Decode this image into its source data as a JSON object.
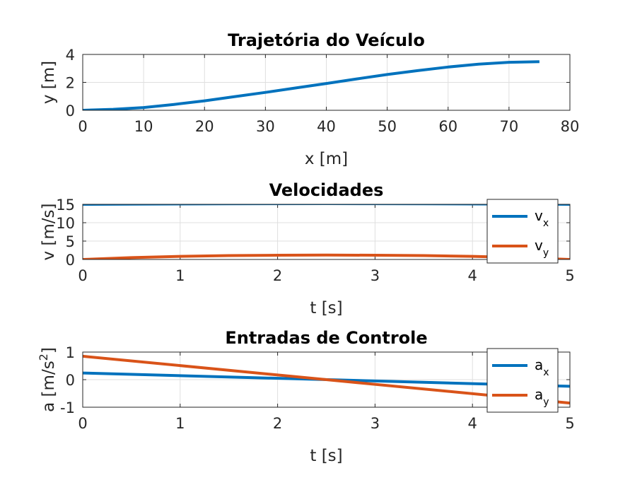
{
  "chart_data": [
    {
      "type": "line",
      "title": "Trajetória do Veículo",
      "xlabel": "x [m]",
      "ylabel": "y [m]",
      "xlim": [
        0,
        80
      ],
      "ylim": [
        0,
        4
      ],
      "xticks": [
        "0",
        "10",
        "20",
        "30",
        "40",
        "50",
        "60",
        "70",
        "80"
      ],
      "yticks": [
        "0",
        "2",
        "4"
      ],
      "grid": true,
      "series": [
        {
          "color": "#0072BD",
          "x": [
            0,
            5,
            10,
            15,
            20,
            25,
            30,
            35,
            40,
            45,
            50,
            55,
            60,
            65,
            70,
            75
          ],
          "y": [
            0.0,
            0.07,
            0.2,
            0.42,
            0.68,
            0.98,
            1.28,
            1.6,
            1.92,
            2.25,
            2.56,
            2.84,
            3.1,
            3.3,
            3.44,
            3.48
          ]
        }
      ]
    },
    {
      "type": "line",
      "title": "Velocidades",
      "xlabel": "t [s]",
      "ylabel": "v [m/s]",
      "xlim": [
        0,
        5
      ],
      "ylim": [
        0,
        15
      ],
      "xticks": [
        "0",
        "1",
        "2",
        "3",
        "4",
        "5"
      ],
      "yticks": [
        "0",
        "5",
        "10",
        "15"
      ],
      "grid": true,
      "legend_position": "top-right",
      "series": [
        {
          "legend_main": "v",
          "legend_sub": "x",
          "color": "#0072BD",
          "x": [
            0,
            0.5,
            1,
            1.5,
            2,
            2.5,
            3,
            3.5,
            4,
            4.5,
            5
          ],
          "y": [
            15.0,
            15.05,
            15.1,
            15.15,
            15.18,
            15.2,
            15.18,
            15.15,
            15.1,
            15.05,
            15.0
          ]
        },
        {
          "legend_main": "v",
          "legend_sub": "y",
          "color": "#D95319",
          "x": [
            0,
            0.5,
            1,
            1.5,
            2,
            2.5,
            3,
            3.5,
            4,
            4.5,
            5
          ],
          "y": [
            0.0,
            0.5,
            0.85,
            1.05,
            1.15,
            1.2,
            1.15,
            1.05,
            0.85,
            0.5,
            0.0
          ]
        }
      ]
    },
    {
      "type": "line",
      "title": "Entradas de Controle",
      "xlabel": "t [s]",
      "ylabel": "a [m/s",
      "ylabel_superscript": "2",
      "ylabel_close": "]",
      "xlim": [
        0,
        5
      ],
      "ylim": [
        -1,
        1
      ],
      "xticks": [
        "0",
        "1",
        "2",
        "3",
        "4",
        "5"
      ],
      "yticks": [
        "-1",
        "0",
        "1"
      ],
      "grid": true,
      "legend_position": "top-right",
      "series": [
        {
          "legend_main": "a",
          "legend_sub": "x",
          "color": "#0072BD",
          "x": [
            0,
            5
          ],
          "y": [
            0.24,
            -0.24
          ]
        },
        {
          "legend_main": "a",
          "legend_sub": "y",
          "color": "#D95319",
          "x": [
            0,
            5
          ],
          "y": [
            0.85,
            -0.85
          ]
        }
      ]
    }
  ]
}
